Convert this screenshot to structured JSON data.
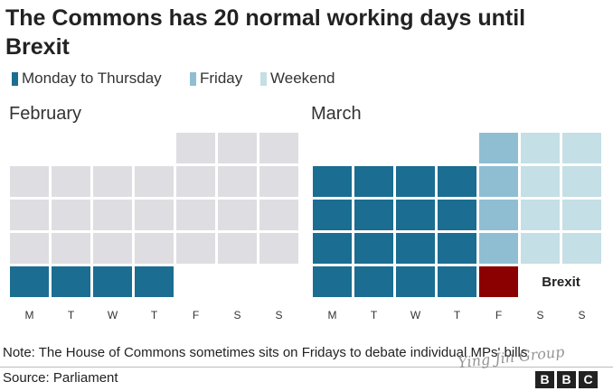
{
  "title": "The Commons has 20 normal working days until Brexit",
  "legend": [
    {
      "label": "Monday to Thursday",
      "color": "#1b6d92"
    },
    {
      "label": "Friday",
      "color": "#8fbed2"
    },
    {
      "label": "Weekend",
      "color": "#c4dfe5"
    }
  ],
  "note": "Note: The House of Commons sometimes sits on Fridays to debate individual MPs' bills",
  "source": "Source: Parliament",
  "watermark": "Ying Jin Group",
  "logo": {
    "letters": [
      "B",
      "B",
      "C"
    ]
  },
  "chart_data": {
    "type": "heatmap",
    "rows": 5,
    "day_labels": [
      "M",
      "T",
      "W",
      "T",
      "F",
      "S",
      "S"
    ],
    "colors": {
      "weekday": "#1b6d92",
      "friday": "#8fbed2",
      "weekend": "#c4dfe5",
      "past": "#dedde1",
      "brexit": "#8b0000"
    },
    "months": [
      {
        "name": "February",
        "cells": [
          [
            "",
            "",
            "",
            "",
            "past",
            "past",
            "past"
          ],
          [
            "past",
            "past",
            "past",
            "past",
            "past",
            "past",
            "past"
          ],
          [
            "past",
            "past",
            "past",
            "past",
            "past",
            "past",
            "past"
          ],
          [
            "past",
            "past",
            "past",
            "past",
            "past",
            "past",
            "past"
          ],
          [
            "weekday",
            "weekday",
            "weekday",
            "weekday",
            "",
            "",
            ""
          ]
        ]
      },
      {
        "name": "March",
        "cells": [
          [
            "",
            "",
            "",
            "",
            "friday",
            "weekend",
            "weekend"
          ],
          [
            "weekday",
            "weekday",
            "weekday",
            "weekday",
            "friday",
            "weekend",
            "weekend"
          ],
          [
            "weekday",
            "weekday",
            "weekday",
            "weekday",
            "friday",
            "weekend",
            "weekend"
          ],
          [
            "weekday",
            "weekday",
            "weekday",
            "weekday",
            "friday",
            "weekend",
            "weekend"
          ],
          [
            "weekday",
            "weekday",
            "weekday",
            "weekday",
            "brexit",
            "",
            ""
          ]
        ],
        "annotation": {
          "label": "Brexit",
          "row": 4,
          "col": 4
        }
      }
    ]
  }
}
